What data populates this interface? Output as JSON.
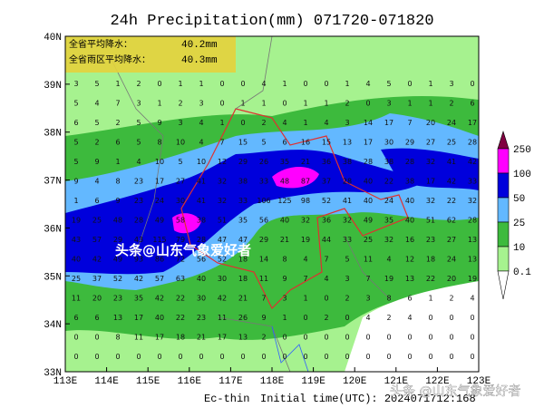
{
  "header": {
    "title": "24h Precipitation(mm) 071720-071820"
  },
  "info_box": {
    "rows": [
      {
        "label": "全省平均降水：",
        "value": "40.2mm"
      },
      {
        "label": "全省雨区平均降水：",
        "value": "40.3mm"
      }
    ]
  },
  "axes": {
    "lat_labels": [
      "40N",
      "39N",
      "38N",
      "37N",
      "36N",
      "35N",
      "34N",
      "33N"
    ],
    "lon_labels": [
      "113E",
      "114E",
      "115E",
      "116E",
      "117E",
      "118E",
      "119E",
      "120E",
      "121E",
      "122E",
      "123E"
    ]
  },
  "legend": {
    "labels": [
      "250",
      "100",
      "50",
      "25",
      "10",
      "0.1"
    ]
  },
  "stations": {
    "rows": [
      [
        3,
        5,
        1,
        2,
        0,
        1,
        1,
        0,
        0,
        4,
        1,
        0,
        0,
        1,
        4,
        5,
        0,
        1,
        3,
        0
      ],
      [
        5,
        4,
        7,
        3,
        1,
        2,
        3,
        0,
        1,
        1,
        0,
        1,
        1,
        2,
        0,
        3,
        1,
        1,
        2,
        6
      ],
      [
        6,
        5,
        2,
        5,
        9,
        3,
        4,
        1,
        0,
        2,
        4,
        1,
        4,
        3,
        14,
        17,
        7,
        20,
        24,
        17
      ],
      [
        5,
        2,
        6,
        5,
        8,
        10,
        4,
        7,
        15,
        5,
        6,
        16,
        15,
        13,
        17,
        30,
        29,
        27,
        25,
        28
      ],
      [
        5,
        9,
        1,
        4,
        10,
        5,
        10,
        12,
        29,
        26,
        35,
        21,
        36,
        38,
        28,
        38,
        28,
        32,
        41,
        42
      ],
      [
        9,
        4,
        8,
        23,
        17,
        27,
        41,
        32,
        38,
        33,
        48,
        87,
        37,
        28,
        40,
        22,
        38,
        17,
        42,
        33
      ],
      [
        1,
        6,
        9,
        23,
        24,
        30,
        41,
        32,
        33,
        106,
        125,
        98,
        52,
        41,
        40,
        24,
        40,
        32,
        22,
        32
      ],
      [
        19,
        25,
        48,
        28,
        49,
        58,
        38,
        51,
        35,
        56,
        40,
        32,
        36,
        32,
        49,
        35,
        40,
        51,
        62,
        28
      ],
      [
        43,
        57,
        29,
        43,
        115,
        79,
        28,
        47,
        47,
        29,
        21,
        19,
        44,
        33,
        25,
        32,
        16,
        23,
        27,
        13
      ],
      [
        40,
        42,
        49,
        93,
        86,
        72,
        56,
        52,
        18,
        14,
        8,
        4,
        7,
        5,
        11,
        4,
        12,
        18,
        24,
        13
      ],
      [
        25,
        37,
        52,
        42,
        57,
        63,
        40,
        30,
        18,
        11,
        9,
        7,
        4,
        3,
        7,
        19,
        13,
        22,
        20,
        19
      ],
      [
        11,
        20,
        23,
        35,
        42,
        22,
        30,
        42,
        21,
        7,
        3,
        1,
        0,
        2,
        3,
        8,
        6,
        1,
        2,
        4
      ],
      [
        6,
        6,
        13,
        17,
        40,
        22,
        23,
        11,
        26,
        9,
        1,
        0,
        2,
        0,
        4,
        2,
        4,
        0,
        0,
        0
      ],
      [
        0,
        0,
        8,
        11,
        17,
        18,
        21,
        17,
        13,
        2,
        0,
        0,
        0,
        0,
        0,
        0,
        0,
        0,
        0,
        0
      ],
      [
        0,
        0,
        0,
        0,
        0,
        0,
        0,
        0,
        0,
        0,
        0,
        0,
        0,
        0,
        0,
        0,
        0,
        0,
        0,
        0
      ]
    ]
  },
  "footer": {
    "model": "Ec-thin",
    "init": "Initial time(UTC): 2024071712:168"
  },
  "watermarks": [
    "头条@山东气象爱好者",
    "头条 @山东气象爱好者"
  ]
}
